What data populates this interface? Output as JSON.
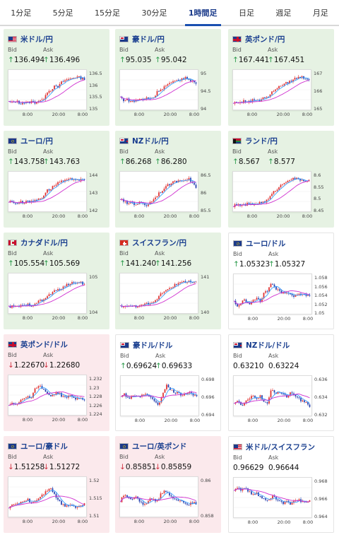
{
  "tabs": [
    "1分足",
    "5分足",
    "15分足",
    "30分足",
    "1時間足",
    "日足",
    "週足",
    "月足"
  ],
  "active_tab": 4,
  "labels": {
    "bid": "Bid",
    "ask": "Ask"
  },
  "up_color": "#e03030",
  "down_color": "#2540b0",
  "ma_fast_color": "#3aa0ff",
  "ma_slow_color": "#d030d0",
  "cards": [
    {
      "pair": "米ドル/円",
      "flag": "us",
      "trend": "up",
      "bid": "136.494",
      "ask": "136.496",
      "arrow": "↑",
      "y_ticks": [
        "136.5",
        "136",
        "135.5",
        "135"
      ],
      "x_ticks": [
        "8:00",
        "20:00",
        "8:00"
      ],
      "shape": [
        0.15,
        0.12,
        0.18,
        0.1,
        0.14,
        0.12,
        0.16,
        0.13,
        0.2,
        0.18,
        0.45,
        0.5,
        0.62,
        0.6,
        0.75,
        0.82,
        0.85,
        0.9,
        0.92,
        0.88,
        0.86
      ]
    },
    {
      "pair": "豪ドル/円",
      "flag": "au",
      "trend": "up",
      "bid": "95.035",
      "ask": "95.042",
      "arrow": "↑",
      "y_ticks": [
        "95",
        "94.5",
        "94"
      ],
      "x_ticks": [
        "8:00",
        "20:00",
        "8:00"
      ],
      "shape": [
        0.3,
        0.2,
        0.22,
        0.15,
        0.18,
        0.25,
        0.2,
        0.28,
        0.26,
        0.3,
        0.5,
        0.55,
        0.65,
        0.7,
        0.75,
        0.82,
        0.85,
        0.88,
        0.86,
        0.8,
        0.7
      ]
    },
    {
      "pair": "英ポンド/円",
      "flag": "gb",
      "trend": "up",
      "bid": "167.441",
      "ask": "167.451",
      "arrow": "↑",
      "y_ticks": [
        "167",
        "166",
        "165"
      ],
      "x_ticks": [
        "8:00",
        "20:00",
        "8:00"
      ],
      "shape": [
        0.1,
        0.15,
        0.12,
        0.18,
        0.15,
        0.2,
        0.22,
        0.2,
        0.3,
        0.28,
        0.4,
        0.55,
        0.6,
        0.68,
        0.72,
        0.78,
        0.85,
        0.9,
        0.92,
        0.88,
        0.85
      ]
    },
    {
      "pair": "ユーロ/円",
      "flag": "eu",
      "trend": "up",
      "bid": "143.758",
      "ask": "143.763",
      "arrow": "↑",
      "y_ticks": [
        "144",
        "143",
        "142"
      ],
      "x_ticks": [
        "8:00",
        "20:00",
        "8:00"
      ],
      "shape": [
        0.2,
        0.22,
        0.15,
        0.2,
        0.18,
        0.25,
        0.2,
        0.25,
        0.3,
        0.35,
        0.55,
        0.6,
        0.7,
        0.8,
        0.82,
        0.85,
        0.88,
        0.92,
        0.9,
        0.88,
        0.86
      ]
    },
    {
      "pair": "NZドル/円",
      "flag": "nz",
      "trend": "up",
      "bid": "86.268",
      "ask": "86.280",
      "arrow": "↑",
      "y_ticks": [
        "86.5",
        "86",
        "85.5"
      ],
      "x_ticks": [
        "8:00",
        "20:00",
        "8:00"
      ],
      "shape": [
        0.3,
        0.2,
        0.15,
        0.2,
        0.12,
        0.18,
        0.15,
        0.1,
        0.2,
        0.3,
        0.45,
        0.55,
        0.65,
        0.75,
        0.8,
        0.85,
        0.88,
        0.9,
        0.92,
        0.8,
        0.65
      ]
    },
    {
      "pair": "ランド/円",
      "flag": "za",
      "trend": "up",
      "bid": "8.567",
      "ask": "8.577",
      "arrow": "↑",
      "y_ticks": [
        "8.6",
        "8.55",
        "8.5",
        "8.45"
      ],
      "x_ticks": [
        "8:00",
        "20:00",
        "8:00"
      ],
      "shape": [
        0.08,
        0.1,
        0.12,
        0.1,
        0.15,
        0.12,
        0.14,
        0.18,
        0.2,
        0.25,
        0.4,
        0.55,
        0.65,
        0.75,
        0.85,
        0.9,
        0.92,
        0.9,
        0.88,
        0.86,
        0.85
      ]
    },
    {
      "pair": "カナダドル/円",
      "flag": "ca",
      "trend": "up",
      "bid": "105.554",
      "ask": "105.569",
      "arrow": "↑",
      "y_ticks": [
        "105",
        "104"
      ],
      "x_ticks": [
        "8:00",
        "20:00",
        "8:00"
      ],
      "shape": [
        0.1,
        0.12,
        0.1,
        0.14,
        0.12,
        0.18,
        0.15,
        0.22,
        0.28,
        0.3,
        0.4,
        0.5,
        0.58,
        0.62,
        0.7,
        0.75,
        0.8,
        0.85,
        0.88,
        0.86,
        0.8
      ]
    },
    {
      "pair": "スイスフラン/円",
      "flag": "ch",
      "trend": "up",
      "bid": "141.240",
      "ask": "141.256",
      "arrow": "↑",
      "y_ticks": [
        "141",
        "140"
      ],
      "x_ticks": [
        "8:00",
        "20:00",
        "8:00"
      ],
      "shape": [
        0.12,
        0.15,
        0.1,
        0.14,
        0.12,
        0.16,
        0.14,
        0.2,
        0.18,
        0.25,
        0.4,
        0.55,
        0.62,
        0.7,
        0.75,
        0.8,
        0.85,
        0.88,
        0.9,
        0.86,
        0.84
      ]
    },
    {
      "pair": "ユーロ/ドル",
      "flag": "eu",
      "trend": "flat",
      "bid": "1.05323",
      "ask": "1.05327",
      "arrow": "↑",
      "y_ticks": [
        "1.058",
        "1.056",
        "1.054",
        "1.052",
        "1.05"
      ],
      "x_ticks": [
        "8:00",
        "20:00",
        "8:00"
      ],
      "shape": [
        0.3,
        0.15,
        0.25,
        0.35,
        0.2,
        0.3,
        0.4,
        0.3,
        0.55,
        0.65,
        0.85,
        0.7,
        0.6,
        0.55,
        0.6,
        0.5,
        0.45,
        0.5,
        0.55,
        0.5,
        0.48
      ]
    },
    {
      "pair": "英ポンド/ドル",
      "flag": "gb",
      "trend": "down",
      "bid": "1.22670",
      "ask": "1.22680",
      "arrow": "↓",
      "y_ticks": [
        "1.232",
        "1.23",
        "1.228",
        "1.226",
        "1.224"
      ],
      "x_ticks": [
        "8:00",
        "20:00",
        "8:00"
      ],
      "shape": [
        0.2,
        0.3,
        0.25,
        0.35,
        0.4,
        0.5,
        0.45,
        0.7,
        0.85,
        0.7,
        0.6,
        0.5,
        0.55,
        0.6,
        0.5,
        0.45,
        0.5,
        0.45,
        0.4,
        0.42,
        0.4
      ]
    },
    {
      "pair": "豪ドル/ドル",
      "flag": "au",
      "trend": "flat",
      "bid": "0.69624",
      "ask": "0.69633",
      "arrow": "↑",
      "y_ticks": [
        "0.698",
        "0.696",
        "0.694"
      ],
      "x_ticks": [
        "8:00",
        "20:00",
        "8:00"
      ],
      "shape": [
        0.5,
        0.6,
        0.4,
        0.55,
        0.5,
        0.45,
        0.6,
        0.55,
        0.5,
        0.3,
        0.25,
        0.6,
        0.85,
        0.7,
        0.65,
        0.6,
        0.55,
        0.6,
        0.65,
        0.55,
        0.5
      ]
    },
    {
      "pair": "NZドル/ドル",
      "flag": "nz",
      "trend": "flat",
      "bid": "0.63210",
      "ask": "0.63224",
      "arrow": "",
      "y_ticks": [
        "0.636",
        "0.634",
        "0.632"
      ],
      "x_ticks": [
        "8:00",
        "20:00",
        "8:00"
      ],
      "shape": [
        0.3,
        0.35,
        0.2,
        0.3,
        0.45,
        0.55,
        0.4,
        0.5,
        0.35,
        0.3,
        0.75,
        0.6,
        0.65,
        0.55,
        0.5,
        0.6,
        0.55,
        0.45,
        0.35,
        0.3,
        0.2
      ]
    },
    {
      "pair": "ユーロ/豪ドル",
      "flag": "eu",
      "trend": "down",
      "bid": "1.51258",
      "ask": "1.51272",
      "arrow": "↓",
      "y_ticks": [
        "1.52",
        "1.515",
        "1.51"
      ],
      "x_ticks": [
        "8:00",
        "20:00",
        "8:00"
      ],
      "shape": [
        0.2,
        0.25,
        0.3,
        0.35,
        0.4,
        0.45,
        0.35,
        0.4,
        0.5,
        0.6,
        0.7,
        0.85,
        0.6,
        0.45,
        0.3,
        0.25,
        0.3,
        0.25,
        0.2,
        0.25,
        0.3
      ]
    },
    {
      "pair": "ユーロ/英ポンド",
      "flag": "eu",
      "trend": "down",
      "bid": "0.85851",
      "ask": "0.85859",
      "arrow": "↓",
      "y_ticks": [
        "0.86",
        "0.858"
      ],
      "x_ticks": [
        "8:00",
        "20:00",
        "8:00"
      ],
      "shape": [
        0.4,
        0.6,
        0.5,
        0.45,
        0.55,
        0.4,
        0.3,
        0.35,
        0.5,
        0.4,
        0.45,
        0.65,
        0.7,
        0.55,
        0.5,
        0.45,
        0.4,
        0.35,
        0.3,
        0.35,
        0.3
      ]
    },
    {
      "pair": "米ドル/スイスフラン",
      "flag": "us",
      "trend": "flat",
      "bid": "0.96629",
      "ask": "0.96644",
      "arrow": "",
      "y_ticks": [
        "0.968",
        "0.966",
        "0.964"
      ],
      "x_ticks": [
        "8:00",
        "20:00",
        "8:00"
      ],
      "shape": [
        0.7,
        0.85,
        0.75,
        0.8,
        0.7,
        0.6,
        0.65,
        0.55,
        0.5,
        0.45,
        0.55,
        0.5,
        0.4,
        0.35,
        0.45,
        0.3,
        0.4,
        0.45,
        0.4,
        0.35,
        0.4
      ]
    }
  ]
}
